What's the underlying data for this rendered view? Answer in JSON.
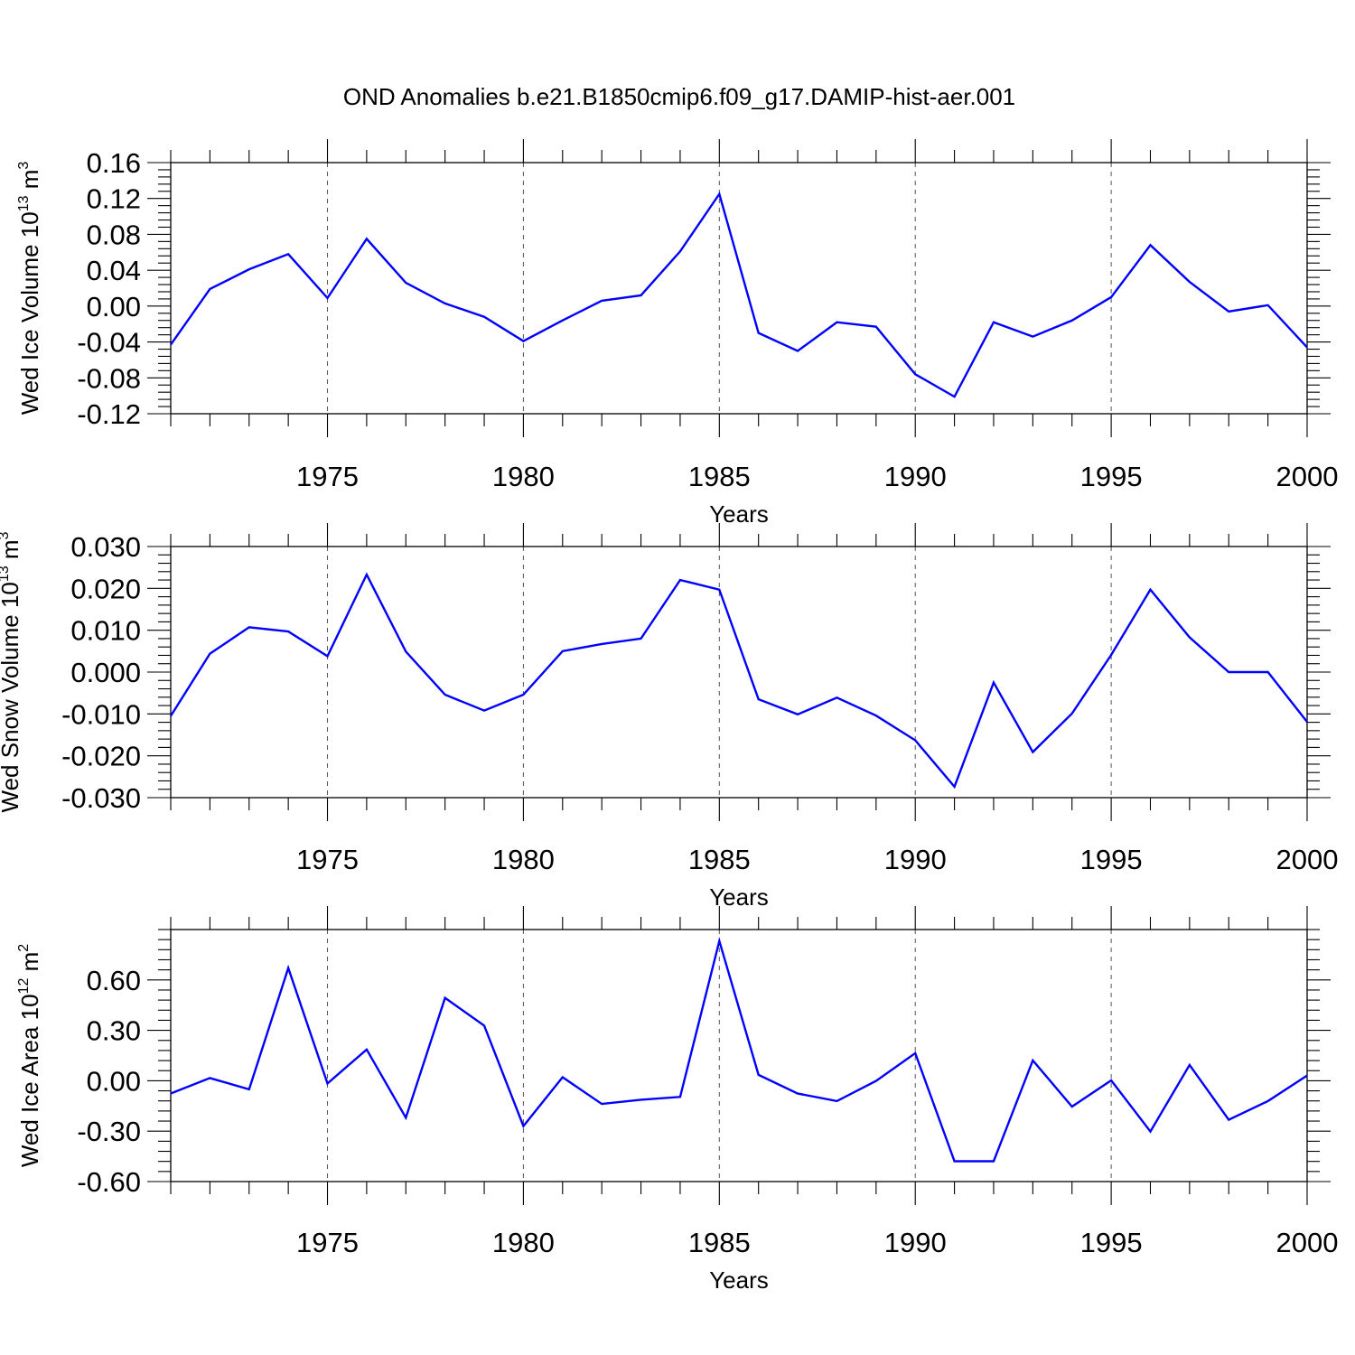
{
  "figure": {
    "title": "OND Anomalies b.e21.B1850cmip6.f09_g17.DAMIP-hist-aer.001",
    "line_color": "#0000ff",
    "grid_color": "#555555"
  },
  "chart_data": [
    {
      "type": "line",
      "title": "",
      "xlabel": "Years",
      "ylabel": {
        "prefix": "Wed Ice Volume 10",
        "exp": "13",
        "unit": " m",
        "unit_exp": "3"
      },
      "xlim": [
        1971,
        2000
      ],
      "ylim": [
        -0.12,
        0.16
      ],
      "xticks": [
        1975,
        1980,
        1985,
        1990,
        1995,
        2000
      ],
      "xtick_labels": [
        "1975",
        "1980",
        "1985",
        "1990",
        "1995",
        "2000"
      ],
      "yticks": [
        -0.12,
        -0.08,
        -0.04,
        0.0,
        0.04,
        0.08,
        0.12,
        0.16
      ],
      "ytick_labels": [
        "-0.12",
        "-0.08",
        "-0.04",
        "0.00",
        "0.04",
        "0.08",
        "0.12",
        "0.16"
      ],
      "vgrid": [
        1975,
        1980,
        1985,
        1990,
        1995
      ],
      "series": [
        {
          "x": [
            1971,
            1972,
            1973,
            1974,
            1975,
            1976,
            1977,
            1978,
            1979,
            1980,
            1981,
            1982,
            1983,
            1984,
            1985,
            1986,
            1987,
            1988,
            1989,
            1990,
            1991,
            1992,
            1993,
            1994,
            1995,
            1996,
            1997,
            1998,
            1999,
            2000
          ],
          "values": [
            -0.043,
            0.019,
            0.041,
            0.058,
            0.009,
            0.075,
            0.026,
            0.003,
            -0.012,
            -0.039,
            -0.016,
            0.006,
            0.012,
            0.061,
            0.125,
            -0.03,
            -0.05,
            -0.018,
            -0.023,
            -0.076,
            -0.101,
            -0.018,
            -0.034,
            -0.016,
            0.01,
            0.068,
            0.027,
            -0.006,
            0.001,
            -0.046
          ]
        }
      ]
    },
    {
      "type": "line",
      "title": "",
      "xlabel": "Years",
      "ylabel": {
        "prefix": "Wed Snow Volume 10",
        "exp": "13",
        "unit": " m",
        "unit_exp": "3"
      },
      "xlim": [
        1971,
        2000
      ],
      "ylim": [
        -0.03,
        0.03
      ],
      "xticks": [
        1975,
        1980,
        1985,
        1990,
        1995,
        2000
      ],
      "xtick_labels": [
        "1975",
        "1980",
        "1985",
        "1990",
        "1995",
        "2000"
      ],
      "yticks": [
        -0.03,
        -0.02,
        -0.01,
        0.0,
        0.01,
        0.02,
        0.03
      ],
      "ytick_labels": [
        "-0.030",
        "-0.020",
        "-0.010",
        "0.000",
        "0.010",
        "0.020",
        "0.030"
      ],
      "vgrid": [
        1975,
        1980,
        1985,
        1990,
        1995
      ],
      "series": [
        {
          "x": [
            1971,
            1972,
            1973,
            1974,
            1975,
            1976,
            1977,
            1978,
            1979,
            1980,
            1981,
            1982,
            1983,
            1984,
            1985,
            1986,
            1987,
            1988,
            1989,
            1990,
            1991,
            1992,
            1993,
            1994,
            1995,
            1996,
            1997,
            1998,
            1999,
            2000
          ],
          "values": [
            -0.0105,
            0.0044,
            0.0107,
            0.0097,
            0.0038,
            0.0233,
            0.0049,
            -0.0054,
            -0.0092,
            -0.0054,
            0.005,
            0.0067,
            0.008,
            0.022,
            0.0197,
            -0.0065,
            -0.0101,
            -0.0061,
            -0.0104,
            -0.0163,
            -0.0274,
            -0.0025,
            -0.0191,
            -0.0099,
            0.0041,
            0.0197,
            0.0083,
            0.0,
            0.0,
            -0.0119
          ]
        }
      ]
    },
    {
      "type": "line",
      "title": "",
      "xlabel": "Years",
      "ylabel": {
        "prefix": "Wed Ice Area 10",
        "exp": "12",
        "unit": " m",
        "unit_exp": "2"
      },
      "xlim": [
        1971,
        2000
      ],
      "ylim": [
        -0.6,
        0.9
      ],
      "xticks": [
        1975,
        1980,
        1985,
        1990,
        1995,
        2000
      ],
      "xtick_labels": [
        "1975",
        "1980",
        "1985",
        "1990",
        "1995",
        "2000"
      ],
      "yticks": [
        -0.6,
        -0.3,
        0.0,
        0.3,
        0.6
      ],
      "ytick_labels": [
        "-0.60",
        "-0.30",
        "0.00",
        "0.30",
        "0.60"
      ],
      "vgrid": [
        1975,
        1980,
        1985,
        1990,
        1995
      ],
      "series": [
        {
          "x": [
            1971,
            1972,
            1973,
            1974,
            1975,
            1976,
            1977,
            1978,
            1979,
            1980,
            1981,
            1982,
            1983,
            1984,
            1985,
            1986,
            1987,
            1988,
            1989,
            1990,
            1991,
            1992,
            1993,
            1994,
            1995,
            1996,
            1997,
            1998,
            1999,
            2000
          ],
          "values": [
            -0.076,
            0.016,
            -0.051,
            0.671,
            -0.016,
            0.186,
            -0.22,
            0.493,
            0.328,
            -0.27,
            0.021,
            -0.138,
            -0.113,
            -0.096,
            0.832,
            0.035,
            -0.076,
            -0.121,
            -0.001,
            0.164,
            -0.479,
            -0.479,
            0.121,
            -0.154,
            0.002,
            -0.302,
            0.094,
            -0.232,
            -0.121,
            0.031
          ]
        }
      ]
    }
  ]
}
